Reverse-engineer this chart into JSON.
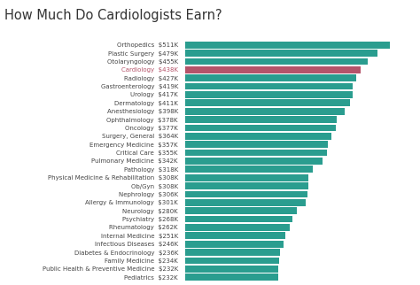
{
  "title": "How Much Do Cardiologists Earn?",
  "categories": [
    "Orthopedics",
    "Plastic Surgery",
    "Otolaryngology",
    "Cardiology",
    "Radiology",
    "Gastroenterology",
    "Urology",
    "Dermatology",
    "Anesthesiology",
    "Ophthalmology",
    "Oncology",
    "Surgery, General",
    "Emergency Medicine",
    "Critical Care",
    "Pulmonary Medicine",
    "Pathology",
    "Physical Medicine & Rehabilitation",
    "Ob/Gyn",
    "Nephrology",
    "Allergy & Immunology",
    "Neurology",
    "Psychiatry",
    "Rheumatology",
    "Internal Medicine",
    "Infectious Diseases",
    "Diabetes & Endocrinology",
    "Family Medicine",
    "Public Health & Preventive Medicine",
    "Pediatrics"
  ],
  "value_labels": [
    "$511K",
    "$479K",
    "$455K",
    "$438K",
    "$427K",
    "$419K",
    "$417K",
    "$411K",
    "$398K",
    "$378K",
    "$377K",
    "$364K",
    "$357K",
    "$355K",
    "$342K",
    "$318K",
    "$308K",
    "$308K",
    "$306K",
    "$301K",
    "$280K",
    "$268K",
    "$262K",
    "$251K",
    "$246K",
    "$236K",
    "$234K",
    "$232K",
    "$232K"
  ],
  "values": [
    511,
    479,
    455,
    438,
    427,
    419,
    417,
    411,
    398,
    378,
    377,
    364,
    357,
    355,
    342,
    318,
    308,
    308,
    306,
    301,
    280,
    268,
    262,
    251,
    246,
    236,
    234,
    232,
    232
  ],
  "bar_color_default": "#2a9d8f",
  "bar_color_highlight": "#b5546a",
  "highlight_index": 3,
  "background_color": "#ffffff",
  "title_fontsize": 10.5,
  "label_fontsize": 5.0,
  "title_color": "#333333",
  "label_color_default": "#444444",
  "label_color_highlight": "#b5546a",
  "bar_gap": 0.18,
  "xlim_max": 570
}
